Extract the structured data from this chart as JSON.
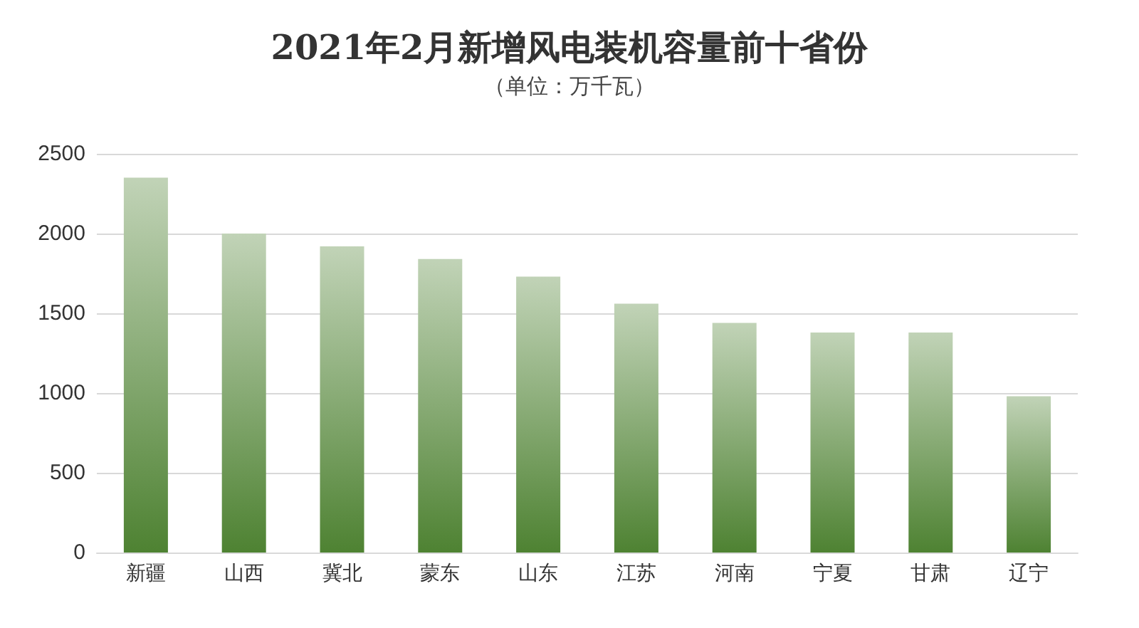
{
  "chart_data": {
    "type": "bar",
    "title": "2021年2月新增风电装机容量前十省份",
    "subtitle": "（单位：万千瓦）",
    "categories": [
      "新疆",
      "山西",
      "冀北",
      "蒙东",
      "山东",
      "江苏",
      "河南",
      "宁夏",
      "甘肃",
      "辽宁"
    ],
    "values": [
      2350,
      2000,
      1920,
      1840,
      1730,
      1560,
      1440,
      1380,
      1380,
      980
    ],
    "color": "#4e8232",
    "ylim": [
      0,
      2500
    ],
    "yticks": [
      0,
      500,
      1000,
      1500,
      2000,
      2500
    ],
    "grid": "y"
  }
}
